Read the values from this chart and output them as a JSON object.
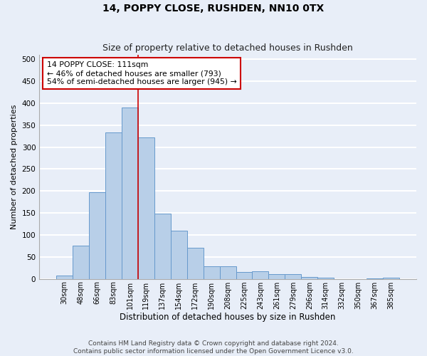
{
  "title_main": "14, POPPY CLOSE, RUSHDEN, NN10 0TX",
  "title_sub": "Size of property relative to detached houses in Rushden",
  "xlabel": "Distribution of detached houses by size in Rushden",
  "ylabel": "Number of detached properties",
  "footnote": "Contains HM Land Registry data © Crown copyright and database right 2024.\nContains public sector information licensed under the Open Government Licence v3.0.",
  "categories": [
    "30sqm",
    "48sqm",
    "66sqm",
    "83sqm",
    "101sqm",
    "119sqm",
    "137sqm",
    "154sqm",
    "172sqm",
    "190sqm",
    "208sqm",
    "225sqm",
    "243sqm",
    "261sqm",
    "279sqm",
    "296sqm",
    "314sqm",
    "332sqm",
    "350sqm",
    "367sqm",
    "385sqm"
  ],
  "values": [
    8,
    75,
    197,
    333,
    390,
    322,
    148,
    110,
    70,
    29,
    29,
    16,
    18,
    10,
    11,
    5,
    2,
    0,
    0,
    1,
    2
  ],
  "bar_color": "#b8cfe8",
  "bar_edge_color": "#6699cc",
  "bar_linewidth": 0.7,
  "annotation_text": "14 POPPY CLOSE: 111sqm\n← 46% of detached houses are smaller (793)\n54% of semi-detached houses are larger (945) →",
  "annotation_box_color": "white",
  "annotation_box_edge": "#cc0000",
  "vline_x": 4.5,
  "vline_color": "#cc0000",
  "vline_linewidth": 1.2,
  "ylim": [
    0,
    510
  ],
  "yticks": [
    0,
    50,
    100,
    150,
    200,
    250,
    300,
    350,
    400,
    450,
    500
  ],
  "background_color": "#e8eef8",
  "grid_color": "white",
  "title_fontsize": 10,
  "subtitle_fontsize": 9,
  "tick_fontsize": 7,
  "ylabel_fontsize": 8,
  "xlabel_fontsize": 8.5,
  "annotation_fontsize": 7.8,
  "footnote_fontsize": 6.5
}
